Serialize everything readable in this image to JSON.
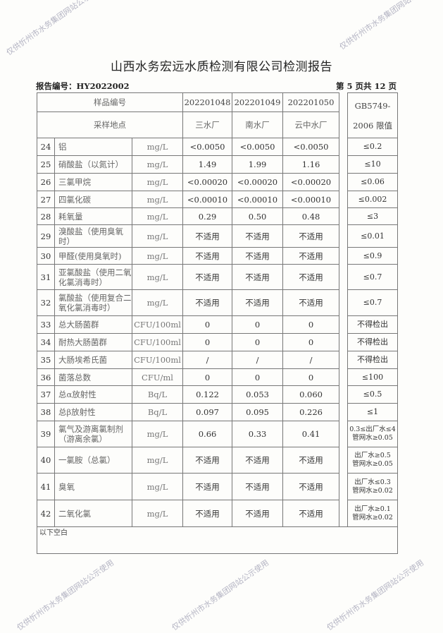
{
  "header": {
    "title": "山西水务宏远水质检测有限公司检测报告",
    "report_no": "报告编号：HY2022002",
    "page": "第 5 页共 12 页"
  },
  "table": {
    "sample_no_label": "样品编号",
    "site_label": "采样地点",
    "standard_label_1": "GB5749-",
    "standard_label_2": "2006 限值",
    "samples": [
      {
        "id": "202201048",
        "site": "三水厂"
      },
      {
        "id": "202201049",
        "site": "南水厂"
      },
      {
        "id": "202201050",
        "site": "云中水厂"
      }
    ],
    "rows": [
      {
        "no": "24",
        "item": "铝",
        "unit": "mg/L",
        "v": [
          "<0.0050",
          "<0.0050",
          "<0.0050"
        ],
        "limit": "≤0.2"
      },
      {
        "no": "25",
        "item": "硝酸盐（以氮计）",
        "unit": "mg/L",
        "v": [
          "1.49",
          "1.99",
          "1.16"
        ],
        "limit": "≤10"
      },
      {
        "no": "26",
        "item": "三氯甲烷",
        "unit": "mg/L",
        "v": [
          "<0.00020",
          "<0.00020",
          "<0.00020"
        ],
        "limit": "≤0.06"
      },
      {
        "no": "27",
        "item": "四氯化碳",
        "unit": "mg/L",
        "v": [
          "<0.00010",
          "<0.00010",
          "<0.00010"
        ],
        "limit": "≤0.002"
      },
      {
        "no": "28",
        "item": "耗氧量",
        "unit": "mg/L",
        "v": [
          "0.29",
          "0.50",
          "0.48"
        ],
        "limit": "≤3"
      },
      {
        "no": "29",
        "item": "溴酸盐（使用臭氧时）",
        "unit": "mg/L",
        "v": [
          "不适用",
          "不适用",
          "不适用"
        ],
        "limit": "≤0.01"
      },
      {
        "no": "30",
        "item": "甲醛(使用臭氧时)",
        "unit": "mg/L",
        "v": [
          "不适用",
          "不适用",
          "不适用"
        ],
        "limit": "≤0.9"
      },
      {
        "no": "31",
        "item": "亚氯酸盐（使用二氧化氯消毒时）",
        "unit": "mg/L",
        "v": [
          "不适用",
          "不适用",
          "不适用"
        ],
        "limit": "≤0.7"
      },
      {
        "no": "32",
        "item": "氯酸盐（使用复合二氧化氯消毒时）",
        "unit": "mg/L",
        "v": [
          "不适用",
          "不适用",
          "不适用"
        ],
        "limit": "≤0.7"
      },
      {
        "no": "33",
        "item": "总大肠菌群",
        "unit": "CFU/100ml",
        "v": [
          "0",
          "0",
          "0"
        ],
        "limit": "不得检出"
      },
      {
        "no": "34",
        "item": "耐热大肠菌群",
        "unit": "CFU/100ml",
        "v": [
          "0",
          "0",
          "0"
        ],
        "limit": "不得检出"
      },
      {
        "no": "35",
        "item": "大肠埃希氏菌",
        "unit": "CFU/100ml",
        "v": [
          "/",
          "/",
          "/"
        ],
        "limit": "不得检出"
      },
      {
        "no": "36",
        "item": "菌落总数",
        "unit": "CFU/ml",
        "v": [
          "0",
          "0",
          "0"
        ],
        "limit": "≤100"
      },
      {
        "no": "37",
        "item": "总α放射性",
        "unit": "Bq/L",
        "v": [
          "0.122",
          "0.053",
          "0.060"
        ],
        "limit": "≤0.5"
      },
      {
        "no": "38",
        "item": "总β放射性",
        "unit": "Bq/L",
        "v": [
          "0.097",
          "0.095",
          "0.226"
        ],
        "limit": "≤1"
      },
      {
        "no": "39",
        "item": "氯气及游离氯制剂（游离余氯）",
        "unit": "mg/L",
        "v": [
          "0.66",
          "0.33",
          "0.41"
        ],
        "limit": "0.3≤出厂水≤4",
        "limit2": "管网水≥0.05"
      },
      {
        "no": "40",
        "item": "一氯胺（总氯）",
        "unit": "mg/L",
        "v": [
          "不适用",
          "不适用",
          "不适用"
        ],
        "limit": "出厂水≥0.5",
        "limit2": "管网水≥0.05"
      },
      {
        "no": "41",
        "item": "臭氧",
        "unit": "mg/L",
        "v": [
          "不适用",
          "不适用",
          "不适用"
        ],
        "limit": "出厂水≤0.3",
        "limit2": "管网水≥0.02"
      },
      {
        "no": "42",
        "item": "二氧化氯",
        "unit": "mg/L",
        "v": [
          "不适用",
          "不适用",
          "不适用"
        ],
        "limit": "出厂水≥0.1",
        "limit2": "管网水≥0.02"
      }
    ],
    "footer_note": "以下空白"
  },
  "watermark": "仅供忻州市水务集团网站公示使用"
}
